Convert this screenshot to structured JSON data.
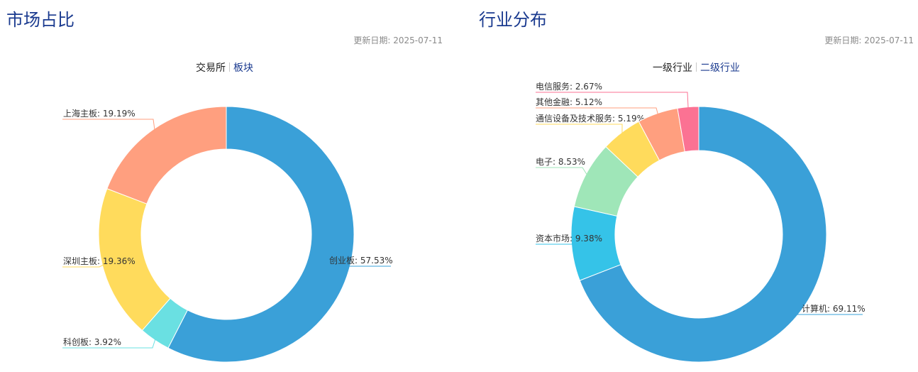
{
  "chart_data": [
    {
      "type": "pie",
      "title": "市场占比",
      "updated": "更新日期: 2025-07-11",
      "tabs": [
        {
          "label": "交易所",
          "active": true
        },
        {
          "label": "板块",
          "active": false
        }
      ],
      "slices": [
        {
          "name": "创业板",
          "value": 57.53,
          "label": "创业板: 57.53%",
          "color": "#3aa0d8"
        },
        {
          "name": "科创板",
          "value": 3.92,
          "label": "科创板: 3.92%",
          "color": "#6ae0e2"
        },
        {
          "name": "深圳主板",
          "value": 19.36,
          "label": "深圳主板: 19.36%",
          "color": "#ffdb5c"
        },
        {
          "name": "上海主板",
          "value": 19.19,
          "label": "上海主板: 19.19%",
          "color": "#ff9f7f"
        }
      ]
    },
    {
      "type": "pie",
      "title": "行业分布",
      "updated": "更新日期: 2025-07-11",
      "tabs": [
        {
          "label": "一级行业",
          "active": true
        },
        {
          "label": "二级行业",
          "active": false
        }
      ],
      "slices": [
        {
          "name": "计算机",
          "value": 69.11,
          "label": "计算机: 69.11%",
          "color": "#3aa0d8"
        },
        {
          "name": "资本市场",
          "value": 9.38,
          "label": "资本市场: 9.38%",
          "color": "#35c3e8"
        },
        {
          "name": "电子",
          "value": 8.53,
          "label": "电子: 8.53%",
          "color": "#9fe6b8"
        },
        {
          "name": "通信设备及技术服务",
          "value": 5.19,
          "label": "通信设备及技术服务: 5.19%",
          "color": "#ffdb5c"
        },
        {
          "name": "其他金融",
          "value": 5.12,
          "label": "其他金融: 5.12%",
          "color": "#ff9f7f"
        },
        {
          "name": "电信服务",
          "value": 2.67,
          "label": "电信服务: 2.67%",
          "color": "#fb7293"
        }
      ]
    }
  ]
}
